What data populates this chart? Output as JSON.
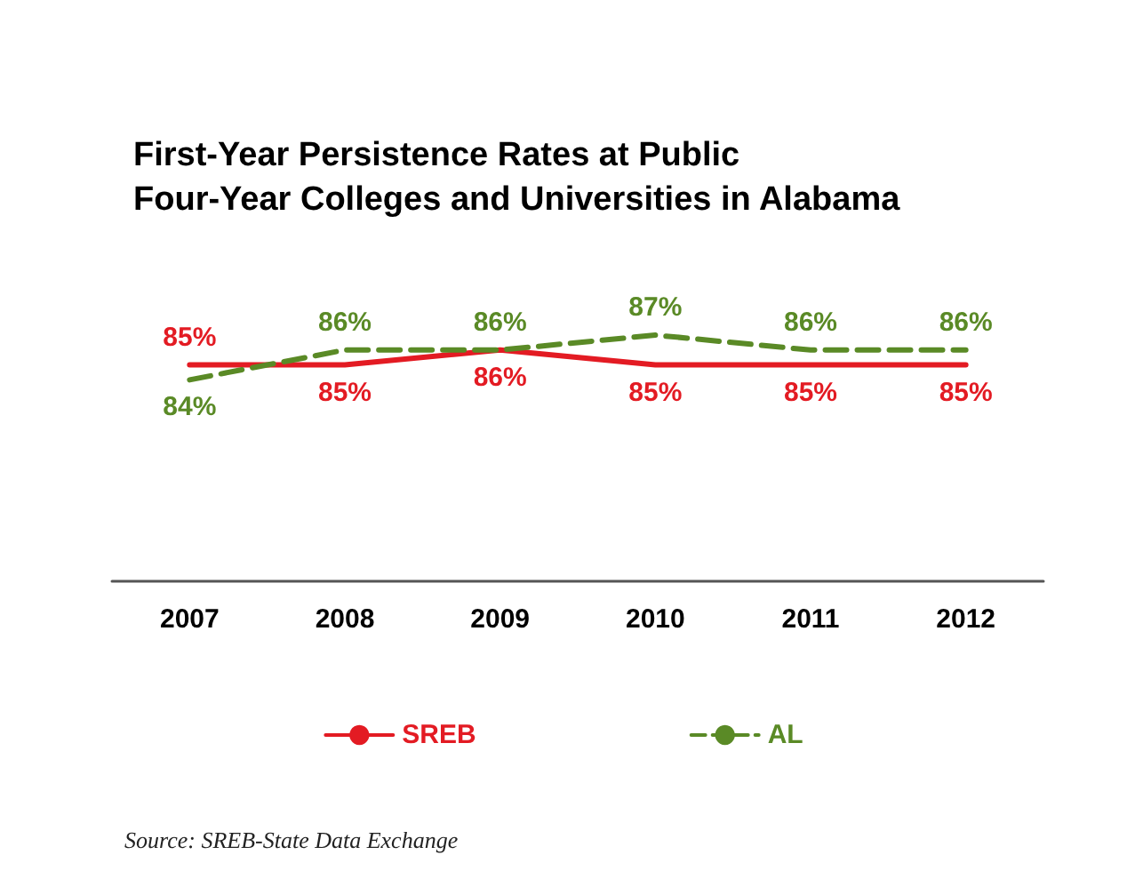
{
  "chart_data": {
    "type": "line",
    "title": "First-Year Persistence Rates at Public\nFour-Year Colleges and Universities in Alabama",
    "categories": [
      "2007",
      "2008",
      "2009",
      "2010",
      "2011",
      "2012"
    ],
    "series": [
      {
        "name": "SREB",
        "color": "#e31b23",
        "line_style": "solid",
        "values": [
          85,
          85,
          86,
          85,
          85,
          85
        ],
        "value_labels": [
          "85%",
          "85%",
          "86%",
          "85%",
          "85%",
          "85%"
        ]
      },
      {
        "name": "AL",
        "color": "#5a8a26",
        "line_style": "dashed",
        "values": [
          84,
          86,
          86,
          87,
          86,
          86
        ],
        "value_labels": [
          "84%",
          "86%",
          "86%",
          "87%",
          "86%",
          "86%"
        ]
      }
    ],
    "tick_labels": "x",
    "grid": false,
    "legend": "bottom",
    "marker": "none",
    "annotations": [
      "Source: SREB-State Data Exchange"
    ]
  }
}
